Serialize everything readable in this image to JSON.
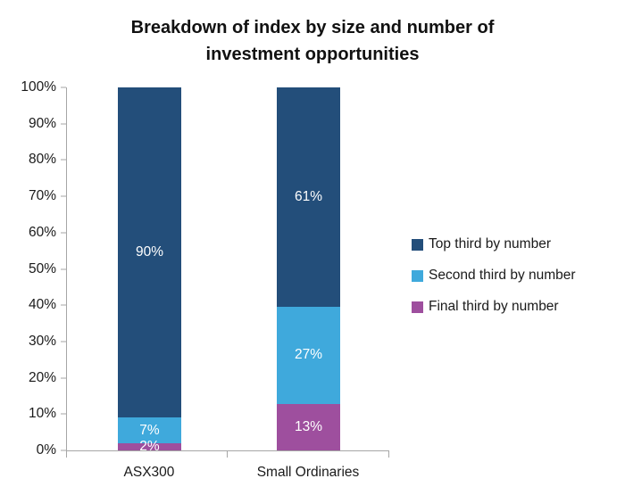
{
  "title": {
    "line1": "Breakdown of index by size and number of",
    "line2": "investment opportunities"
  },
  "colors": {
    "series_top": "#234E7A",
    "series_second": "#3FA9DC",
    "series_final": "#9E4F9E",
    "axis": "#A6A6A6",
    "text": "#1A1A1A",
    "data_label": "#FFFFFF"
  },
  "y_axis": {
    "tick_labels": [
      "100%",
      "90%",
      "80%",
      "70%",
      "60%",
      "50%",
      "40%",
      "30%",
      "20%",
      "10%",
      "0%"
    ]
  },
  "chart_data": {
    "type": "bar",
    "stacked": true,
    "title": "Breakdown of index by size and number of investment opportunities",
    "categories": [
      "ASX300",
      "Small Ordinaries"
    ],
    "series": [
      {
        "name": "Top third by number",
        "color": "#234E7A",
        "values": [
          90,
          61
        ],
        "labels": [
          "90%",
          "61%"
        ]
      },
      {
        "name": "Second third by number",
        "color": "#3FA9DC",
        "values": [
          7,
          27
        ],
        "labels": [
          "7%",
          "27%"
        ]
      },
      {
        "name": "Final third by number",
        "color": "#9E4F9E",
        "values": [
          2,
          13
        ],
        "labels": [
          "2%",
          "13%"
        ]
      }
    ],
    "xlabel": "",
    "ylabel": "",
    "ylim": [
      0,
      100
    ],
    "ytick_step": 10,
    "grid": false,
    "legend_position": "right",
    "data_labels": "inside-center, white"
  },
  "legend": {
    "items": [
      {
        "label": "Top third by number"
      },
      {
        "label": "Second third by number"
      },
      {
        "label": "Final third by number"
      }
    ]
  }
}
